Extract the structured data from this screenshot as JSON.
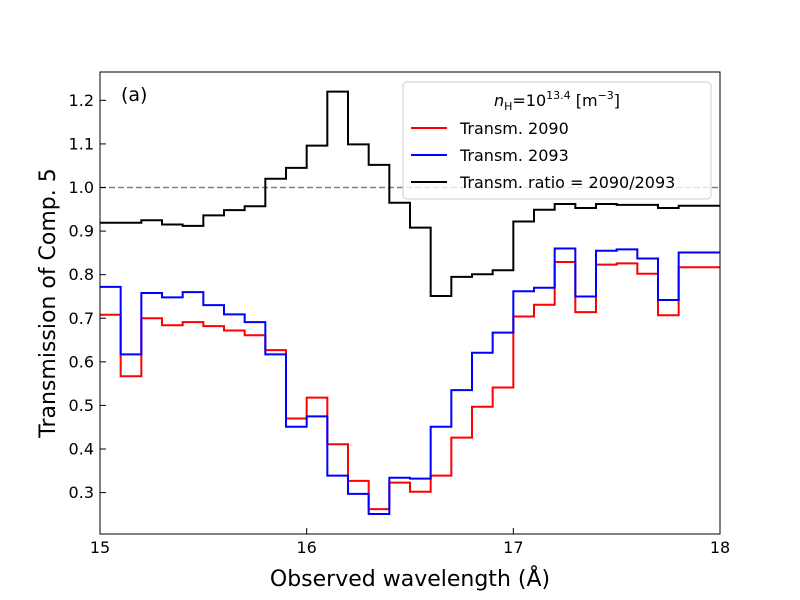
{
  "chart_data": {
    "type": "line",
    "step": true,
    "panel_label": "(a)",
    "xlabel": "Observed wavelength (Å)",
    "ylabel": "Transmission of Comp. 5",
    "xlim": [
      15,
      18
    ],
    "ylim": [
      0.205,
      1.265
    ],
    "x_ticks": [
      15,
      16,
      17,
      18
    ],
    "x_tick_labels": [
      "15",
      "16",
      "17",
      "18"
    ],
    "y_ticks": [
      0.3,
      0.4,
      0.5,
      0.6,
      0.7,
      0.8,
      0.9,
      1.0,
      1.1,
      1.2
    ],
    "y_tick_labels": [
      "0.3",
      "0.4",
      "0.5",
      "0.6",
      "0.7",
      "0.8",
      "0.9",
      "1.0",
      "1.1",
      "1.2"
    ],
    "grid": false,
    "legend": {
      "placement": "top-right",
      "title_main": "n",
      "title_sub": "H",
      "title_eq": "=10",
      "title_sup": "13.4",
      "title_unit_a": " [m",
      "title_unit_sup": "−3",
      "title_unit_b": "]"
    },
    "reference_line": {
      "y": 1.0,
      "style": "dashed",
      "color": "#808080"
    },
    "bin_edges": [
      15.0,
      15.1,
      15.2,
      15.3,
      15.4,
      15.5,
      15.6,
      15.7,
      15.8,
      15.9,
      16.0,
      16.1,
      16.2,
      16.3,
      16.4,
      16.5,
      16.6,
      16.7,
      16.8,
      16.9,
      17.0,
      17.1,
      17.2,
      17.3,
      17.4,
      17.5,
      17.6,
      17.7,
      17.8,
      17.9,
      18.0
    ],
    "series": [
      {
        "name": "Transm. 2090",
        "color": "#ff0000",
        "values": [
          0.708,
          0.567,
          0.7,
          0.684,
          0.691,
          0.682,
          0.672,
          0.661,
          0.627,
          0.47,
          0.518,
          0.411,
          0.327,
          0.262,
          0.323,
          0.302,
          0.339,
          0.426,
          0.497,
          0.541,
          0.704,
          0.731,
          0.829,
          0.714,
          0.823,
          0.826,
          0.802,
          0.707,
          0.817,
          0.817
        ]
      },
      {
        "name": "Transm. 2093",
        "color": "#0000ff",
        "values": [
          0.772,
          0.617,
          0.758,
          0.748,
          0.76,
          0.73,
          0.709,
          0.691,
          0.617,
          0.451,
          0.475,
          0.339,
          0.297,
          0.251,
          0.334,
          0.332,
          0.451,
          0.535,
          0.621,
          0.667,
          0.762,
          0.77,
          0.86,
          0.75,
          0.855,
          0.858,
          0.837,
          0.742,
          0.851,
          0.851
        ]
      },
      {
        "name": "Transm. ratio = 2090/2093",
        "color": "#000000",
        "values": [
          0.919,
          0.919,
          0.925,
          0.915,
          0.912,
          0.936,
          0.948,
          0.957,
          1.02,
          1.045,
          1.096,
          1.22,
          1.099,
          1.052,
          0.965,
          0.908,
          0.751,
          0.795,
          0.801,
          0.81,
          0.922,
          0.949,
          0.962,
          0.953,
          0.962,
          0.96,
          0.96,
          0.953,
          0.958,
          0.958
        ]
      }
    ]
  }
}
